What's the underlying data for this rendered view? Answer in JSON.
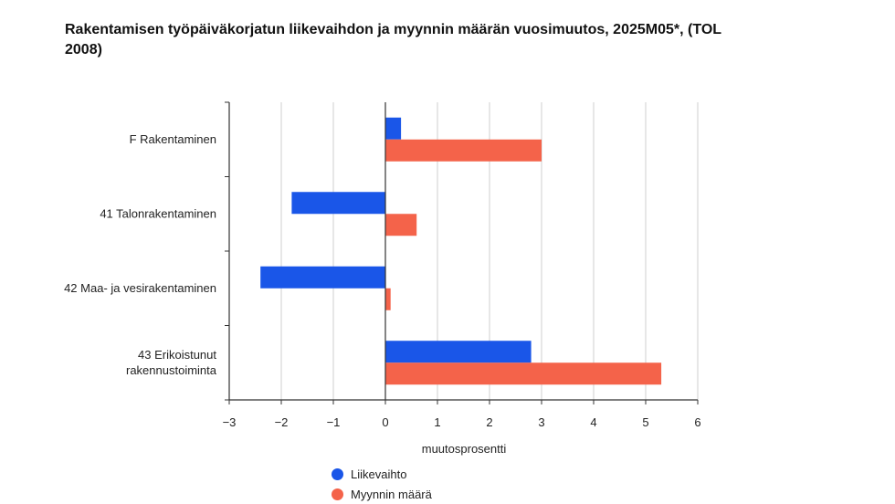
{
  "chart_data": {
    "type": "bar",
    "orientation": "horizontal",
    "title": "Rakentamisen työpäiväkorjatun liikevaihdon ja myynnin määrän vuosimuutos, 2025M05*, (TOL 2008)",
    "xlabel": "muutosprosentti",
    "ylabel": "",
    "categories": [
      [
        "F Rakentaminen"
      ],
      [
        "41 Talonrakentaminen"
      ],
      [
        "42 Maa- ja vesirakentaminen"
      ],
      [
        "43 Erikoistunut",
        "rakennustoiminta"
      ]
    ],
    "series": [
      {
        "name": "Liikevaihto",
        "color": "#1a56e8",
        "values": [
          0.3,
          -1.8,
          -2.4,
          2.8
        ]
      },
      {
        "name": "Myynnin määrä",
        "color": "#f4634a",
        "values": [
          3.0,
          0.6,
          0.1,
          5.3
        ]
      }
    ],
    "xlim": [
      -3,
      6
    ],
    "xticks": [
      "−3",
      "−2",
      "−1",
      "0",
      "1",
      "2",
      "3",
      "4",
      "5",
      "6"
    ],
    "grid": true,
    "legend_position": "bottom"
  }
}
